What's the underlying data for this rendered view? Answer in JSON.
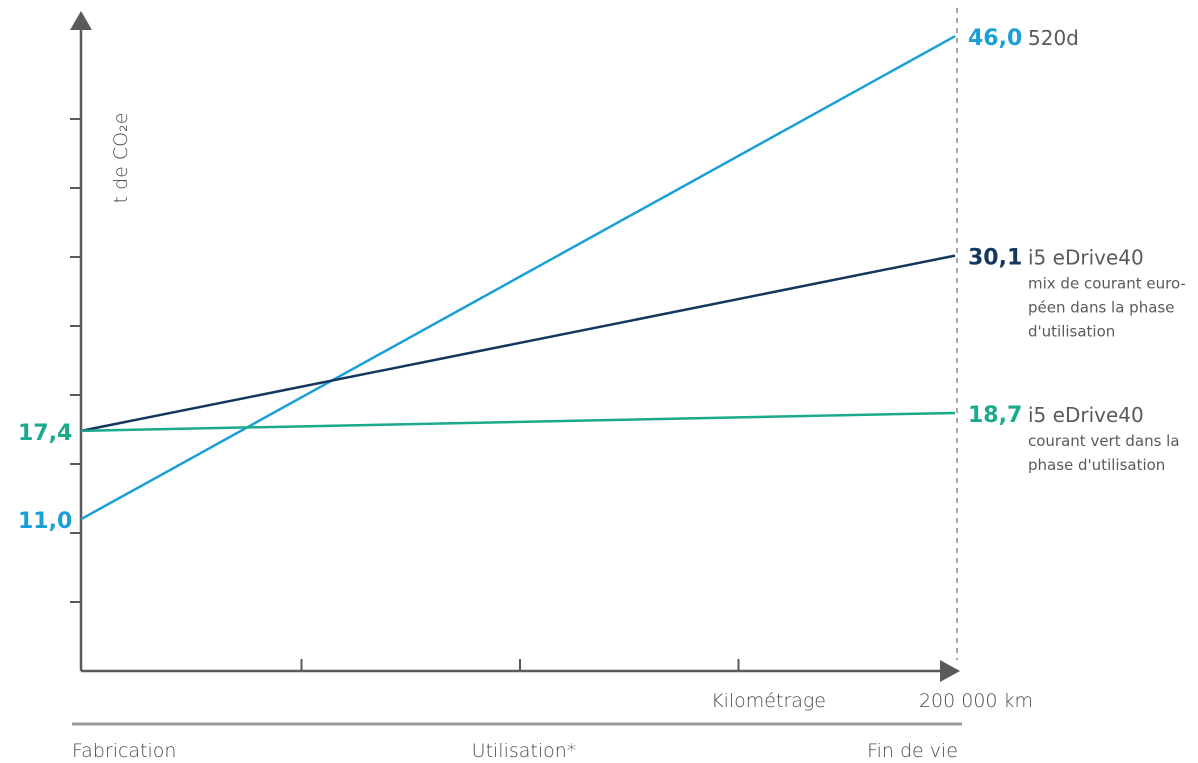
{
  "colors": {
    "axis": "#5a5a5a",
    "series_520d": "#1a9fd8",
    "series_mix": "#15375e",
    "series_green": "#1aaa8c",
    "phase_bar": "#9a9a9a"
  },
  "chart_data": {
    "type": "line",
    "ylabel": "t de CO₂e",
    "ylim": [
      0,
      50
    ],
    "y_ticks": [
      5,
      10,
      15,
      20,
      25,
      30,
      35,
      40
    ],
    "xlabel": "Kilométrage",
    "x_end_label": "200 000 km",
    "xlim": [
      0,
      200000
    ],
    "x_ticks": [
      50000,
      100000,
      150000
    ],
    "phases": [
      "Fabrication",
      "Utilisation*",
      "Fin de vie"
    ],
    "series": [
      {
        "key": "s520d",
        "start_value": 11.0,
        "end_value": 46.0,
        "start_label": "11,0",
        "end_label": "46,0",
        "name": "520d",
        "desc_lines": []
      },
      {
        "key": "smix",
        "start_value": 17.4,
        "end_value": 30.1,
        "start_label": "",
        "end_label": "30,1",
        "name": "i5 eDrive40",
        "desc_lines": [
          "mix de courant euro-",
          "péen dans la phase",
          "d'utilisation"
        ]
      },
      {
        "key": "sgreen",
        "start_value": 17.4,
        "end_value": 18.7,
        "start_label": "17,4",
        "end_label": "18,7",
        "name": "i5 eDrive40",
        "desc_lines": [
          "courant vert dans la",
          "phase d'utilisation"
        ]
      }
    ]
  }
}
